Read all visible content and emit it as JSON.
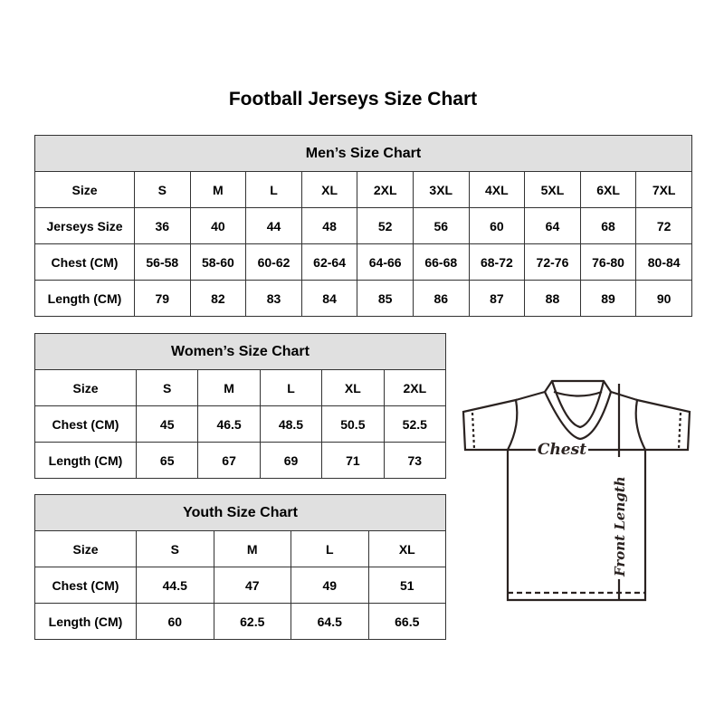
{
  "title": "Football Jerseys Size Chart",
  "men": {
    "heading": "Men’s Size Chart",
    "rows": [
      [
        "Size",
        "S",
        "M",
        "L",
        "XL",
        "2XL",
        "3XL",
        "4XL",
        "5XL",
        "6XL",
        "7XL"
      ],
      [
        "Jerseys Size",
        "36",
        "40",
        "44",
        "48",
        "52",
        "56",
        "60",
        "64",
        "68",
        "72"
      ],
      [
        "Chest (CM)",
        "56-58",
        "58-60",
        "60-62",
        "62-64",
        "64-66",
        "66-68",
        "68-72",
        "72-76",
        "76-80",
        "80-84"
      ],
      [
        "Length (CM)",
        "79",
        "82",
        "83",
        "84",
        "85",
        "86",
        "87",
        "88",
        "89",
        "90"
      ]
    ]
  },
  "women": {
    "heading": "Women’s Size Chart",
    "rows": [
      [
        "Size",
        "S",
        "M",
        "L",
        "XL",
        "2XL"
      ],
      [
        "Chest (CM)",
        "45",
        "46.5",
        "48.5",
        "50.5",
        "52.5"
      ],
      [
        "Length (CM)",
        "65",
        "67",
        "69",
        "71",
        "73"
      ]
    ]
  },
  "youth": {
    "heading": "Youth Size Chart",
    "rows": [
      [
        "Size",
        "S",
        "M",
        "L",
        "XL"
      ],
      [
        "Chest (CM)",
        "44.5",
        "47",
        "49",
        "51"
      ],
      [
        "Length (CM)",
        "60",
        "62.5",
        "64.5",
        "66.5"
      ]
    ]
  },
  "diagram": {
    "chest_label": "Chest",
    "length_label": "Front Length"
  },
  "colors": {
    "header_bg": "#e0e0e0",
    "border": "#333333",
    "shirt_line": "#2a2220"
  }
}
